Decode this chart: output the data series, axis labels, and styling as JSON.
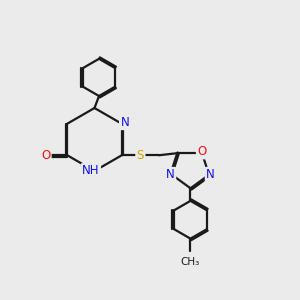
{
  "bg": "#ebebeb",
  "bond_color": "#1a1a1a",
  "bond_lw": 1.6,
  "dbl_sep": 0.055,
  "atom_bg": "#ebebeb",
  "colors": {
    "N": "#1010ee",
    "O": "#ee1010",
    "S": "#ccaa00",
    "C": "#1a1a1a"
  },
  "font_size": 8.5,
  "figsize": [
    3.0,
    3.0
  ],
  "dpi": 100
}
